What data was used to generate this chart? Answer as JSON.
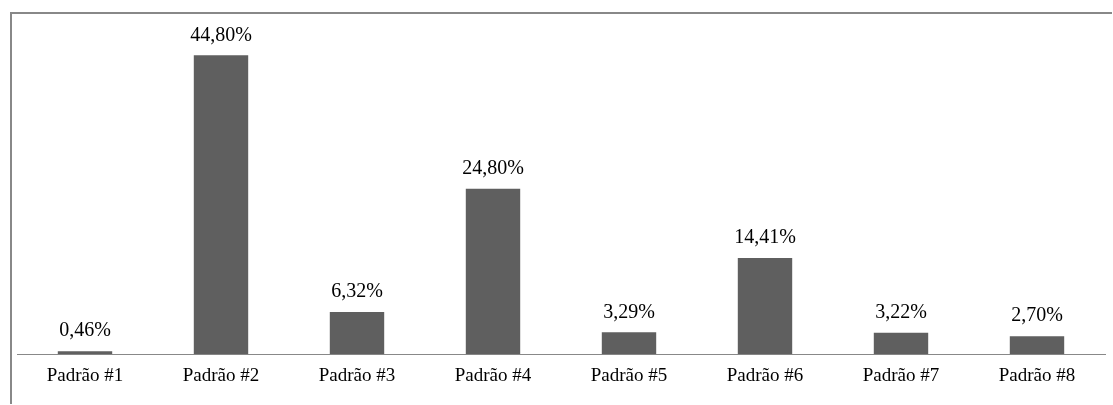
{
  "chart_data": {
    "type": "bar",
    "categories": [
      "Padrão #1",
      "Padrão #2",
      "Padrão #3",
      "Padrão #4",
      "Padrão #5",
      "Padrão #6",
      "Padrão #7",
      "Padrão #8"
    ],
    "values": [
      0.46,
      44.8,
      6.32,
      24.8,
      3.29,
      14.41,
      3.22,
      2.7
    ],
    "value_labels": [
      "0,46%",
      "44,80%",
      "6,32%",
      "24,80%",
      "3,29%",
      "14,41%",
      "3,22%",
      "2,70%"
    ],
    "color": "#5f5f5f",
    "grid": false,
    "legend": false,
    "tick_labels": "x"
  }
}
